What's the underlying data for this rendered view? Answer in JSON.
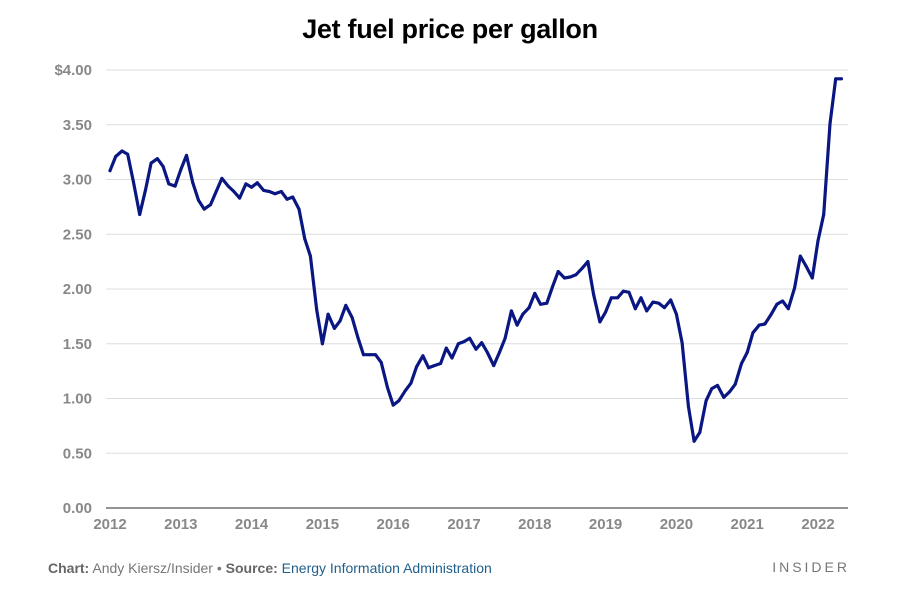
{
  "chart_data": {
    "type": "line",
    "title": "Jet fuel price per gallon",
    "xlabel": "",
    "ylabel": "",
    "ylim": [
      0,
      4.0
    ],
    "y_ticks": [
      "0.00",
      "0.50",
      "1.00",
      "1.50",
      "2.00",
      "2.50",
      "3.00",
      "3.50",
      "$4.00"
    ],
    "x_ticks": [
      "2012",
      "2013",
      "2014",
      "2015",
      "2016",
      "2017",
      "2018",
      "2019",
      "2020",
      "2021",
      "2022"
    ],
    "grid": true,
    "line_color": "#0a1782",
    "series": [
      {
        "x": [
          2012.0,
          2012.08,
          2012.17,
          2012.25,
          2012.33,
          2012.42,
          2012.5,
          2012.58,
          2012.67,
          2012.75,
          2012.83,
          2012.92,
          2013.0,
          2013.08,
          2013.17,
          2013.25,
          2013.33,
          2013.42,
          2013.5,
          2013.58,
          2013.67,
          2013.75,
          2013.83,
          2013.92,
          2014.0,
          2014.08,
          2014.17,
          2014.25,
          2014.33,
          2014.42,
          2014.5,
          2014.58,
          2014.67,
          2014.75,
          2014.83,
          2014.92,
          2015.0,
          2015.08,
          2015.17,
          2015.25,
          2015.33,
          2015.42,
          2015.5,
          2015.58,
          2015.67,
          2015.75,
          2015.83,
          2015.92,
          2016.0,
          2016.08,
          2016.17,
          2016.25,
          2016.33,
          2016.42,
          2016.5,
          2016.58,
          2016.67,
          2016.75,
          2016.83,
          2016.92,
          2017.0,
          2017.08,
          2017.17,
          2017.25,
          2017.33,
          2017.42,
          2017.5,
          2017.58,
          2017.67,
          2017.75,
          2017.83,
          2017.92,
          2018.0,
          2018.08,
          2018.17,
          2018.25,
          2018.33,
          2018.42,
          2018.5,
          2018.58,
          2018.67,
          2018.75,
          2018.83,
          2018.92,
          2019.0,
          2019.08,
          2019.17,
          2019.25,
          2019.33,
          2019.42,
          2019.5,
          2019.58,
          2019.67,
          2019.75,
          2019.83,
          2019.92,
          2020.0,
          2020.08,
          2020.17,
          2020.25,
          2020.33,
          2020.42,
          2020.5,
          2020.58,
          2020.67,
          2020.75,
          2020.83,
          2020.92,
          2021.0,
          2021.08,
          2021.17,
          2021.25,
          2021.33,
          2021.42,
          2021.5,
          2021.58,
          2021.67,
          2021.75,
          2021.83,
          2021.92,
          2022.0,
          2022.08,
          2022.17,
          2022.25,
          2022.33
        ],
        "y": [
          3.08,
          3.21,
          3.26,
          3.23,
          2.98,
          2.68,
          2.9,
          3.15,
          3.19,
          3.12,
          2.96,
          2.94,
          3.09,
          3.22,
          2.97,
          2.81,
          2.73,
          2.77,
          2.89,
          3.01,
          2.94,
          2.89,
          2.83,
          2.96,
          2.93,
          2.97,
          2.9,
          2.89,
          2.87,
          2.89,
          2.82,
          2.84,
          2.73,
          2.46,
          2.3,
          1.81,
          1.5,
          1.77,
          1.64,
          1.71,
          1.85,
          1.74,
          1.56,
          1.4,
          1.4,
          1.4,
          1.33,
          1.1,
          0.94,
          0.98,
          1.07,
          1.14,
          1.29,
          1.39,
          1.28,
          1.3,
          1.32,
          1.46,
          1.37,
          1.5,
          1.52,
          1.55,
          1.45,
          1.51,
          1.42,
          1.3,
          1.42,
          1.55,
          1.8,
          1.67,
          1.77,
          1.83,
          1.96,
          1.86,
          1.87,
          2.02,
          2.16,
          2.1,
          2.11,
          2.13,
          2.19,
          2.25,
          1.95,
          1.7,
          1.79,
          1.92,
          1.92,
          1.98,
          1.97,
          1.82,
          1.92,
          1.8,
          1.88,
          1.87,
          1.83,
          1.9,
          1.77,
          1.51,
          0.93,
          0.61,
          0.69,
          0.98,
          1.09,
          1.12,
          1.01,
          1.06,
          1.13,
          1.32,
          1.42,
          1.6,
          1.67,
          1.68,
          1.76,
          1.86,
          1.89,
          1.82,
          2.01,
          2.3,
          2.21,
          2.1,
          2.44,
          2.68,
          3.51,
          3.92,
          3.92
        ]
      }
    ]
  },
  "footer": {
    "chart_label": "Chart:",
    "chart_author": "Andy Kiersz/Insider",
    "separator": "•",
    "source_label": "Source:",
    "source_name": "Energy Information Administration"
  },
  "brand": "INSIDER"
}
